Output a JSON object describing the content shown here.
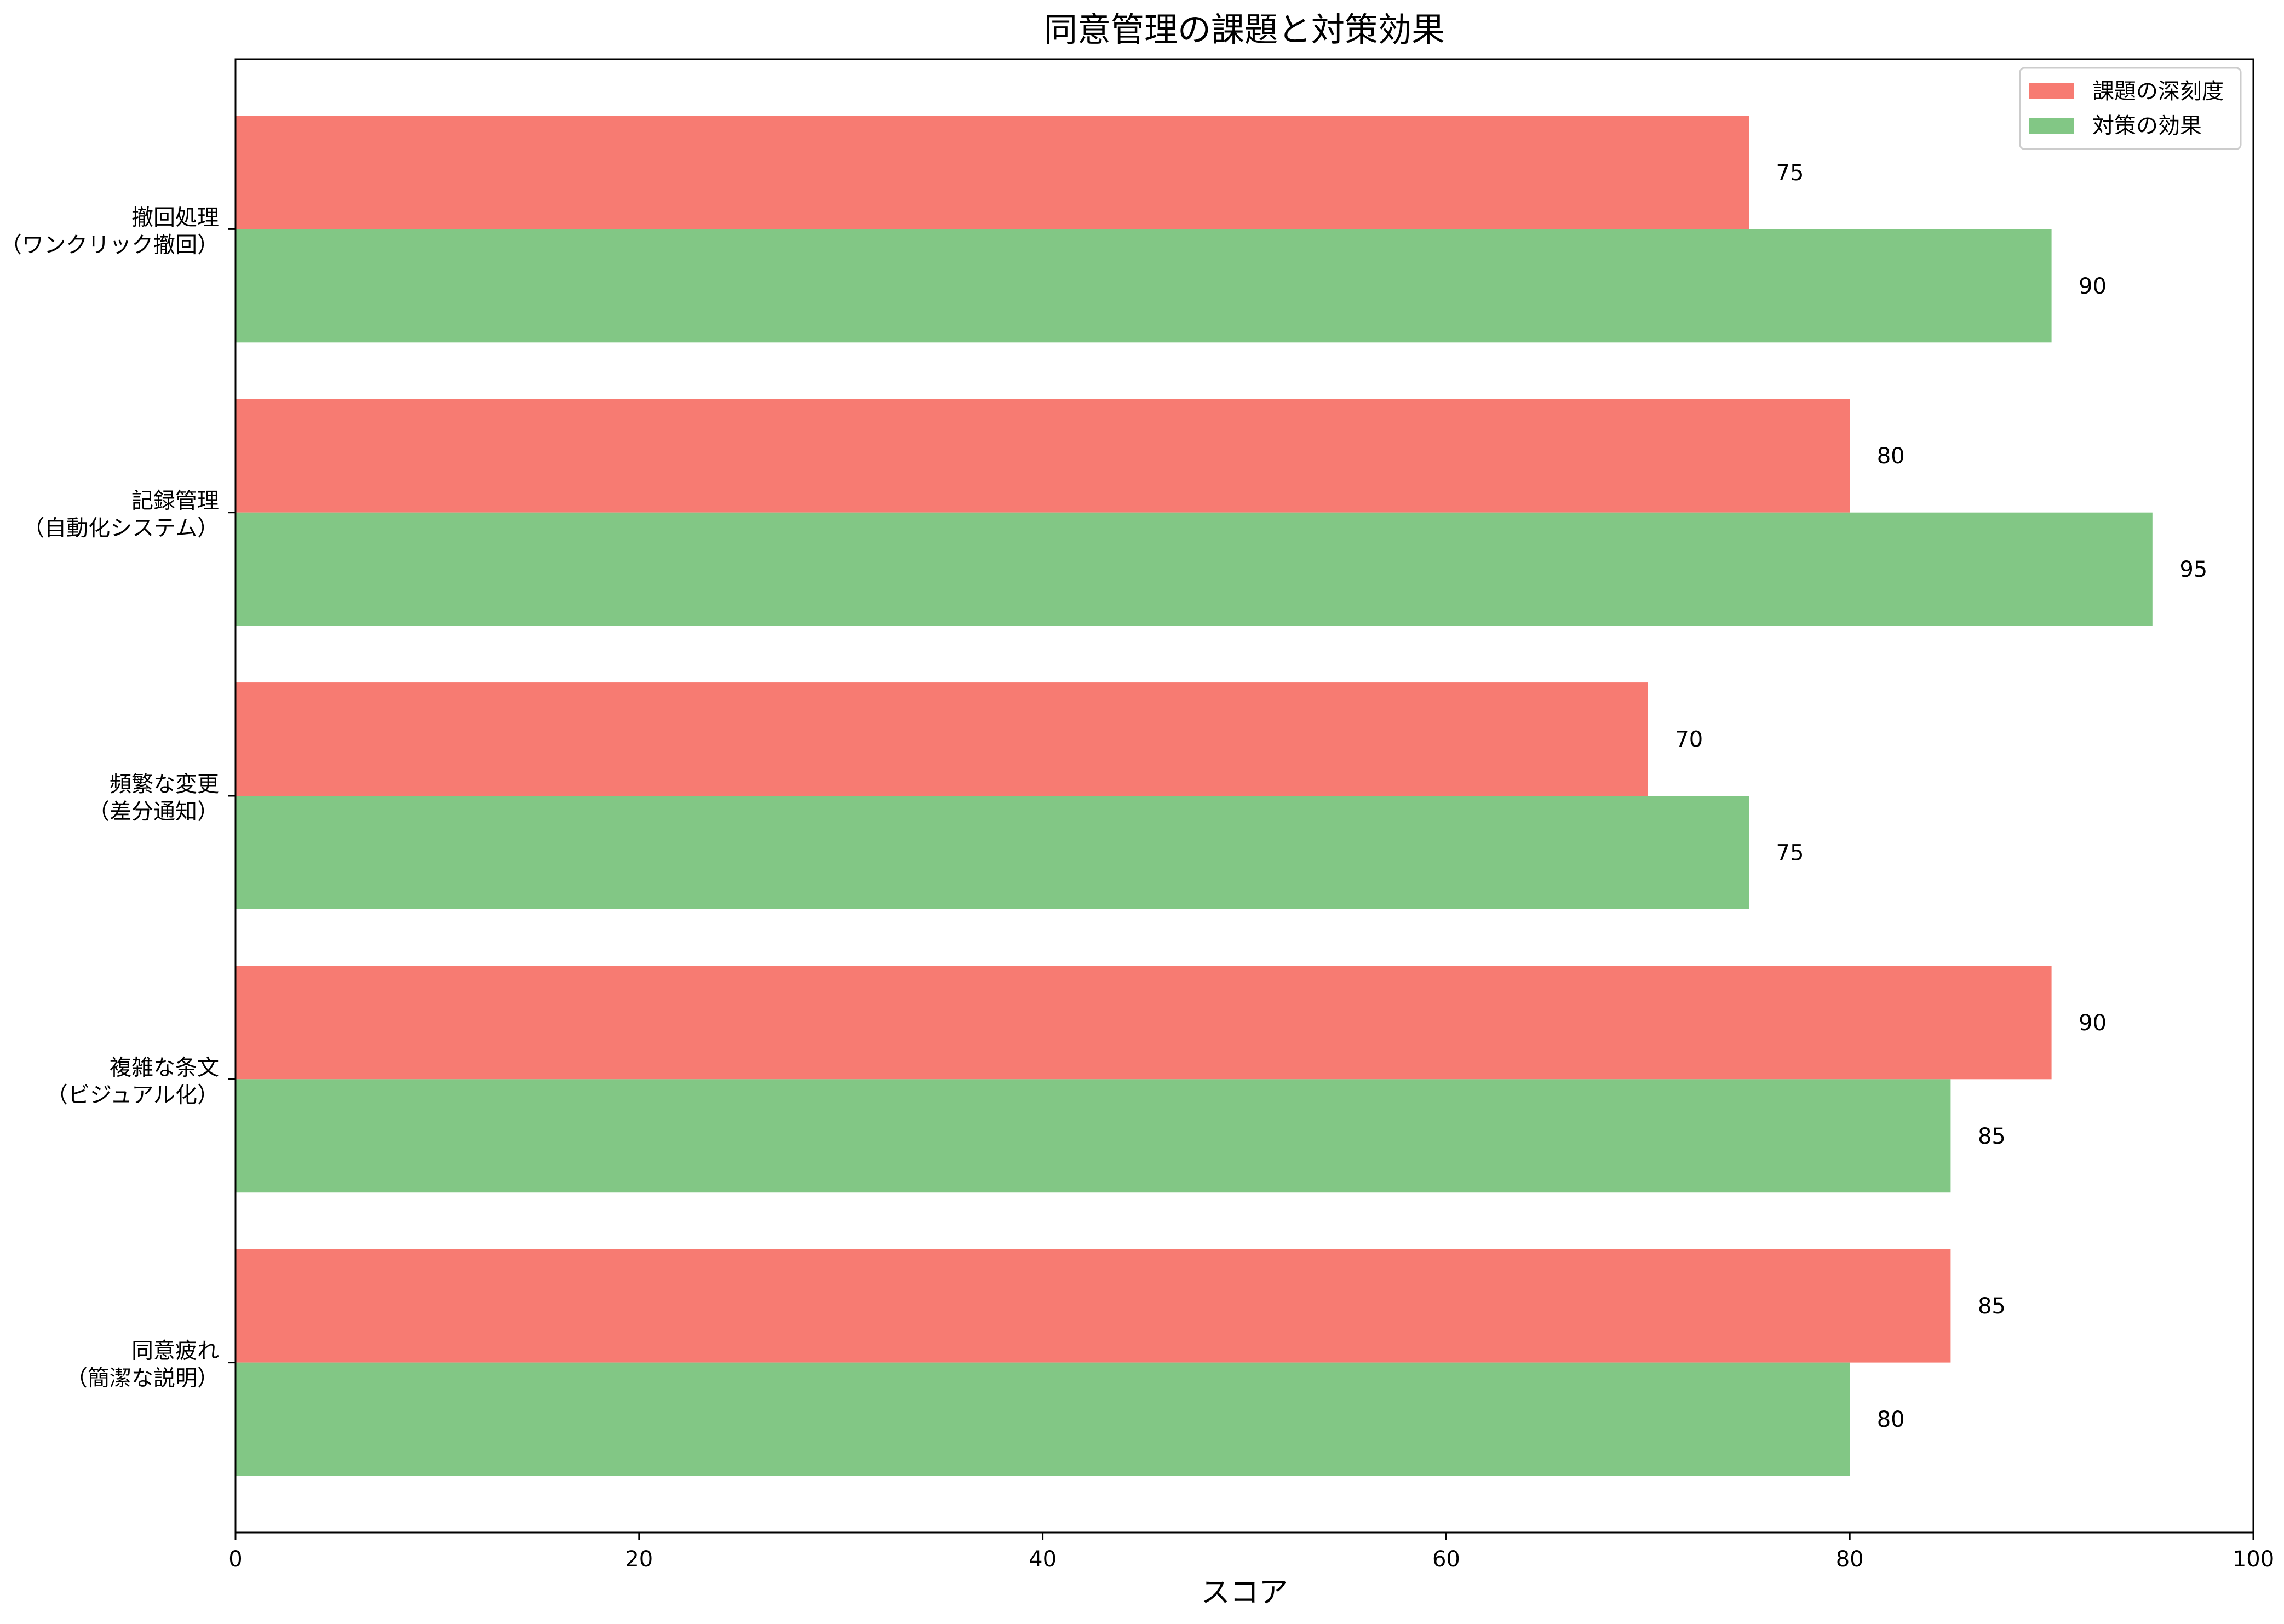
{
  "chart_data": {
    "type": "bar",
    "orientation": "horizontal",
    "title": "同意管理の課題と対策効果",
    "xlabel": "スコア",
    "ylabel": "",
    "xlim": [
      0,
      100
    ],
    "xticks": [
      0,
      20,
      40,
      60,
      80,
      100
    ],
    "grid": false,
    "legend_position": "top-right",
    "categories": [
      [
        "同意疲れ",
        "（簡潔な説明）"
      ],
      [
        "複雑な条文",
        "（ビジュアル化）"
      ],
      [
        "頻繁な変更",
        "（差分通知）"
      ],
      [
        "記録管理",
        "（自動化システム）"
      ],
      [
        "撤回処理",
        "（ワンクリック撤回）"
      ]
    ],
    "series": [
      {
        "name": "課題の深刻度",
        "color": "#f77b72",
        "values": [
          85,
          90,
          70,
          80,
          75
        ]
      },
      {
        "name": "対策の効果",
        "color": "#82c785",
        "values": [
          80,
          85,
          75,
          95,
          90
        ]
      }
    ]
  }
}
